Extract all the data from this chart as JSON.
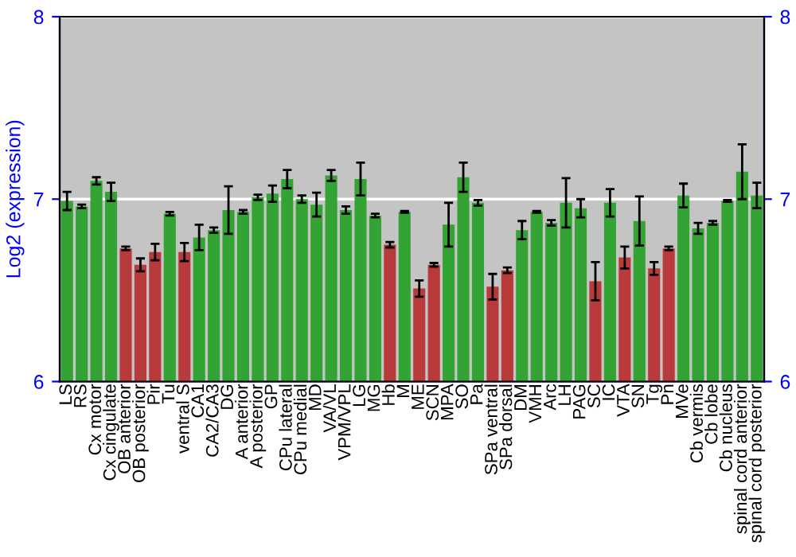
{
  "chart_data": {
    "type": "bar",
    "ylabel": "Log2 (expression)",
    "categories": [
      "LS",
      "RS",
      "Cx motor",
      "Cx cingulate",
      "OB anterior",
      "OB posterior",
      "Pir",
      "Tu",
      "ventral S",
      "CA1",
      "CA2/CA3",
      "DG",
      "A anterior",
      "A posterior",
      "GP",
      "CPu lateral",
      "CPu medial",
      "MD",
      "VA/VL",
      "VPM/VPL",
      "LG",
      "MG",
      "Hb",
      "M",
      "ME",
      "SCN",
      "MPA",
      "SO",
      "Pa",
      "SPa ventral",
      "SPa dorsal",
      "DM",
      "VMH",
      "Arc",
      "LH",
      "PAG",
      "SC",
      "IC",
      "VTA",
      "SN",
      "Tg",
      "Pn",
      "MVe",
      "Cb vermis",
      "Cb lobe",
      "Cb nucleus",
      "spinal cord anterior",
      "spinal cord posterior"
    ],
    "values": [
      6.99,
      6.96,
      7.1,
      7.04,
      6.73,
      6.64,
      6.71,
      6.92,
      6.71,
      6.79,
      6.83,
      6.94,
      6.93,
      7.01,
      7.03,
      7.11,
      7.0,
      6.97,
      7.13,
      6.94,
      7.11,
      6.91,
      6.75,
      6.93,
      6.51,
      6.64,
      6.86,
      7.12,
      6.98,
      6.52,
      6.61,
      6.83,
      6.93,
      6.87,
      6.98,
      6.95,
      6.55,
      6.98,
      6.68,
      6.88,
      6.62,
      6.73,
      7.02,
      6.84,
      6.87,
      6.99,
      7.15,
      7.02
    ],
    "errors": [
      0.05,
      0.01,
      0.02,
      0.05,
      0.01,
      0.035,
      0.045,
      0.01,
      0.05,
      0.07,
      0.015,
      0.13,
      0.01,
      0.015,
      0.045,
      0.05,
      0.02,
      0.065,
      0.03,
      0.02,
      0.09,
      0.01,
      0.015,
      0.005,
      0.045,
      0.01,
      0.12,
      0.08,
      0.015,
      0.07,
      0.015,
      0.05,
      0.005,
      0.015,
      0.135,
      0.05,
      0.105,
      0.075,
      0.06,
      0.135,
      0.035,
      0.01,
      0.065,
      0.03,
      0.01,
      0.005,
      0.15,
      0.07
    ],
    "colors": [
      "#33a333",
      "#33a333",
      "#33a333",
      "#33a333",
      "#b83a3a",
      "#b83a3a",
      "#b83a3a",
      "#33a333",
      "#b83a3a",
      "#33a333",
      "#33a333",
      "#33a333",
      "#33a333",
      "#33a333",
      "#33a333",
      "#33a333",
      "#33a333",
      "#33a333",
      "#33a333",
      "#33a333",
      "#33a333",
      "#33a333",
      "#b83a3a",
      "#33a333",
      "#b83a3a",
      "#b83a3a",
      "#33a333",
      "#33a333",
      "#33a333",
      "#b83a3a",
      "#b83a3a",
      "#33a333",
      "#33a333",
      "#33a333",
      "#33a333",
      "#33a333",
      "#b83a3a",
      "#33a333",
      "#b83a3a",
      "#33a333",
      "#b83a3a",
      "#b83a3a",
      "#33a333",
      "#33a333",
      "#33a333",
      "#33a333",
      "#33a333",
      "#33a333"
    ],
    "ylim": [
      6,
      8
    ],
    "yticks": [
      6,
      7,
      8
    ],
    "y2lim": [
      6,
      8
    ],
    "y2ticks": [
      6,
      7,
      8
    ],
    "grid": "y"
  }
}
